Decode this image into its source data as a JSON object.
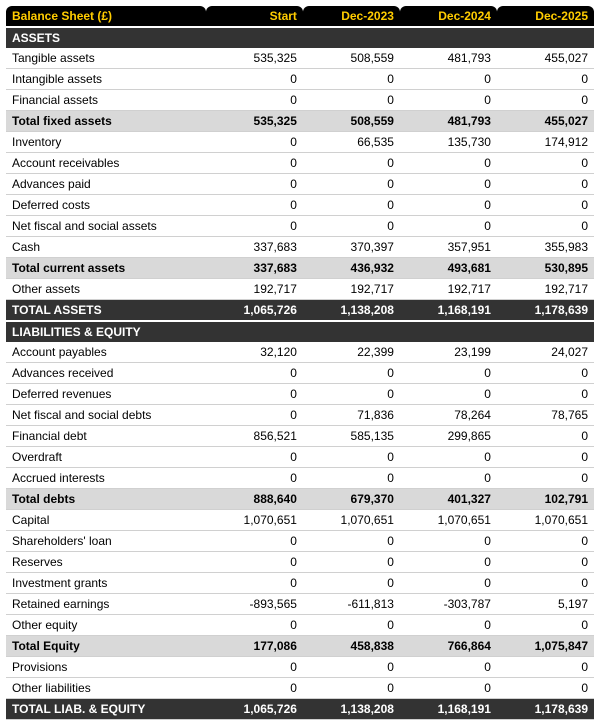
{
  "colors": {
    "header_bg": "#000000",
    "header_fg": "#ffcc00",
    "section_bg": "#333333",
    "section_fg": "#ffffff",
    "subtotal_bg": "#d9d9d9",
    "total_bg": "#333333",
    "total_fg": "#ffffff",
    "row_border": "#d0d0d0"
  },
  "header": [
    "Balance Sheet (£)",
    "Start",
    "Dec-2023",
    "Dec-2024",
    "Dec-2025"
  ],
  "rows": [
    {
      "type": "section",
      "label": "ASSETS"
    },
    {
      "type": "normal",
      "label": "Tangible assets",
      "vals": [
        "535,325",
        "508,559",
        "481,793",
        "455,027"
      ]
    },
    {
      "type": "normal",
      "label": "Intangible assets",
      "vals": [
        "0",
        "0",
        "0",
        "0"
      ]
    },
    {
      "type": "normal",
      "label": "Financial assets",
      "vals": [
        "0",
        "0",
        "0",
        "0"
      ]
    },
    {
      "type": "subtotal",
      "label": "Total fixed assets",
      "vals": [
        "535,325",
        "508,559",
        "481,793",
        "455,027"
      ]
    },
    {
      "type": "normal",
      "label": "Inventory",
      "vals": [
        "0",
        "66,535",
        "135,730",
        "174,912"
      ]
    },
    {
      "type": "normal",
      "label": "Account receivables",
      "vals": [
        "0",
        "0",
        "0",
        "0"
      ]
    },
    {
      "type": "normal",
      "label": "Advances paid",
      "vals": [
        "0",
        "0",
        "0",
        "0"
      ]
    },
    {
      "type": "normal",
      "label": "Deferred costs",
      "vals": [
        "0",
        "0",
        "0",
        "0"
      ]
    },
    {
      "type": "normal",
      "label": "Net fiscal and social assets",
      "vals": [
        "0",
        "0",
        "0",
        "0"
      ]
    },
    {
      "type": "normal",
      "label": "Cash",
      "vals": [
        "337,683",
        "370,397",
        "357,951",
        "355,983"
      ]
    },
    {
      "type": "subtotal",
      "label": "Total current assets",
      "vals": [
        "337,683",
        "436,932",
        "493,681",
        "530,895"
      ]
    },
    {
      "type": "normal",
      "label": "Other assets",
      "vals": [
        "192,717",
        "192,717",
        "192,717",
        "192,717"
      ]
    },
    {
      "type": "total",
      "label": "TOTAL ASSETS",
      "vals": [
        "1,065,726",
        "1,138,208",
        "1,168,191",
        "1,178,639"
      ]
    },
    {
      "type": "section",
      "label": "LIABILITIES & EQUITY"
    },
    {
      "type": "normal",
      "label": "Account payables",
      "vals": [
        "32,120",
        "22,399",
        "23,199",
        "24,027"
      ]
    },
    {
      "type": "normal",
      "label": "Advances received",
      "vals": [
        "0",
        "0",
        "0",
        "0"
      ]
    },
    {
      "type": "normal",
      "label": "Deferred revenues",
      "vals": [
        "0",
        "0",
        "0",
        "0"
      ]
    },
    {
      "type": "normal",
      "label": "Net fiscal and social debts",
      "vals": [
        "0",
        "71,836",
        "78,264",
        "78,765"
      ]
    },
    {
      "type": "normal",
      "label": "Financial debt",
      "vals": [
        "856,521",
        "585,135",
        "299,865",
        "0"
      ]
    },
    {
      "type": "normal",
      "label": "Overdraft",
      "vals": [
        "0",
        "0",
        "0",
        "0"
      ]
    },
    {
      "type": "normal",
      "label": "Accrued interests",
      "vals": [
        "0",
        "0",
        "0",
        "0"
      ]
    },
    {
      "type": "subtotal",
      "label": "Total debts",
      "vals": [
        "888,640",
        "679,370",
        "401,327",
        "102,791"
      ]
    },
    {
      "type": "normal",
      "label": "Capital",
      "vals": [
        "1,070,651",
        "1,070,651",
        "1,070,651",
        "1,070,651"
      ]
    },
    {
      "type": "normal",
      "label": "Shareholders' loan",
      "vals": [
        "0",
        "0",
        "0",
        "0"
      ]
    },
    {
      "type": "normal",
      "label": "Reserves",
      "vals": [
        "0",
        "0",
        "0",
        "0"
      ]
    },
    {
      "type": "normal",
      "label": "Investment grants",
      "vals": [
        "0",
        "0",
        "0",
        "0"
      ]
    },
    {
      "type": "normal",
      "label": "Retained earnings",
      "vals": [
        "-893,565",
        "-611,813",
        "-303,787",
        "5,197"
      ]
    },
    {
      "type": "normal",
      "label": "Other equity",
      "vals": [
        "0",
        "0",
        "0",
        "0"
      ]
    },
    {
      "type": "subtotal",
      "label": "Total Equity",
      "vals": [
        "177,086",
        "458,838",
        "766,864",
        "1,075,847"
      ]
    },
    {
      "type": "normal",
      "label": "Provisions",
      "vals": [
        "0",
        "0",
        "0",
        "0"
      ]
    },
    {
      "type": "normal",
      "label": "Other liabilities",
      "vals": [
        "0",
        "0",
        "0",
        "0"
      ]
    },
    {
      "type": "total",
      "label": "TOTAL LIAB. & EQUITY",
      "vals": [
        "1,065,726",
        "1,138,208",
        "1,168,191",
        "1,178,639"
      ]
    }
  ]
}
